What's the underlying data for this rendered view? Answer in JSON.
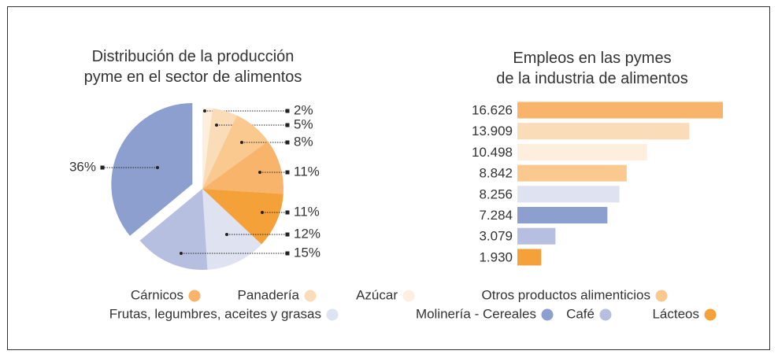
{
  "chart_data": [
    {
      "type": "pie",
      "title": "Distribución de la producción\npyme en el sector de alimentos",
      "values": [
        2,
        5,
        8,
        11,
        11,
        12,
        15,
        36
      ],
      "value_labels": [
        "2%",
        "5%",
        "8%",
        "11%",
        "11%",
        "12%",
        "15%",
        "36%"
      ],
      "colors": [
        "#fdeedd",
        "#fbdcb8",
        "#f9c98f",
        "#f7b46a",
        "#f4a13a",
        "#dfe2f0",
        "#b6bfe0",
        "#8d9fcf"
      ]
    },
    {
      "type": "hbar",
      "title": "Empleos en las pymes\nde la industria de alimentos",
      "categories": [
        "Cárnicos",
        "Panadería",
        "Azúcar",
        "Otros productos alimenticios",
        "Frutas, legumbres, aceites y grasas",
        "Molinería - Cereales",
        "Café",
        "Lácteos"
      ],
      "values": [
        16626,
        13909,
        10498,
        8842,
        8256,
        7284,
        3079,
        1930
      ],
      "value_labels": [
        "16.626",
        "13.909",
        "10.498",
        "8.842",
        "8.256",
        "7.284",
        "3.079",
        "1.930"
      ],
      "colors": [
        "#f7b46a",
        "#fbdcb8",
        "#fdeedd",
        "#f9c98f",
        "#dfe2f0",
        "#8d9fcf",
        "#b6bfe0",
        "#f4a13a"
      ]
    }
  ]
}
